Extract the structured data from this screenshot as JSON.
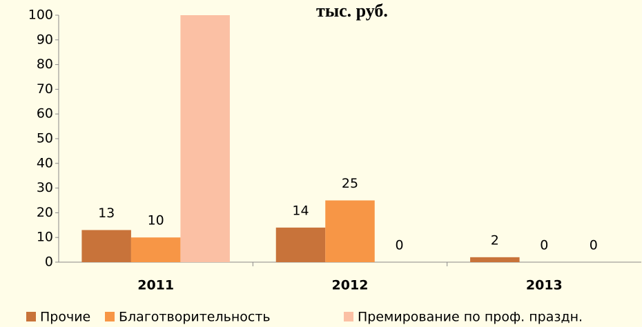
{
  "chart_data": {
    "type": "bar",
    "title": "тыс. руб.",
    "categories": [
      "2011",
      "2012",
      "2013"
    ],
    "series": [
      {
        "name": "Прочие",
        "color": "#c8733a",
        "values": [
          13,
          14,
          2
        ]
      },
      {
        "name": "Благотворительность",
        "color": "#f79646",
        "values": [
          10,
          25,
          0
        ]
      },
      {
        "name": "Премирование по проф. праздн.",
        "color": "#fbc0a4",
        "values": [
          100,
          0,
          0
        ]
      }
    ],
    "ylim": [
      0,
      100
    ],
    "yticks": [
      0,
      10,
      20,
      30,
      40,
      50,
      60,
      70,
      80,
      90,
      100
    ],
    "grid": false,
    "legend": "bottom"
  }
}
